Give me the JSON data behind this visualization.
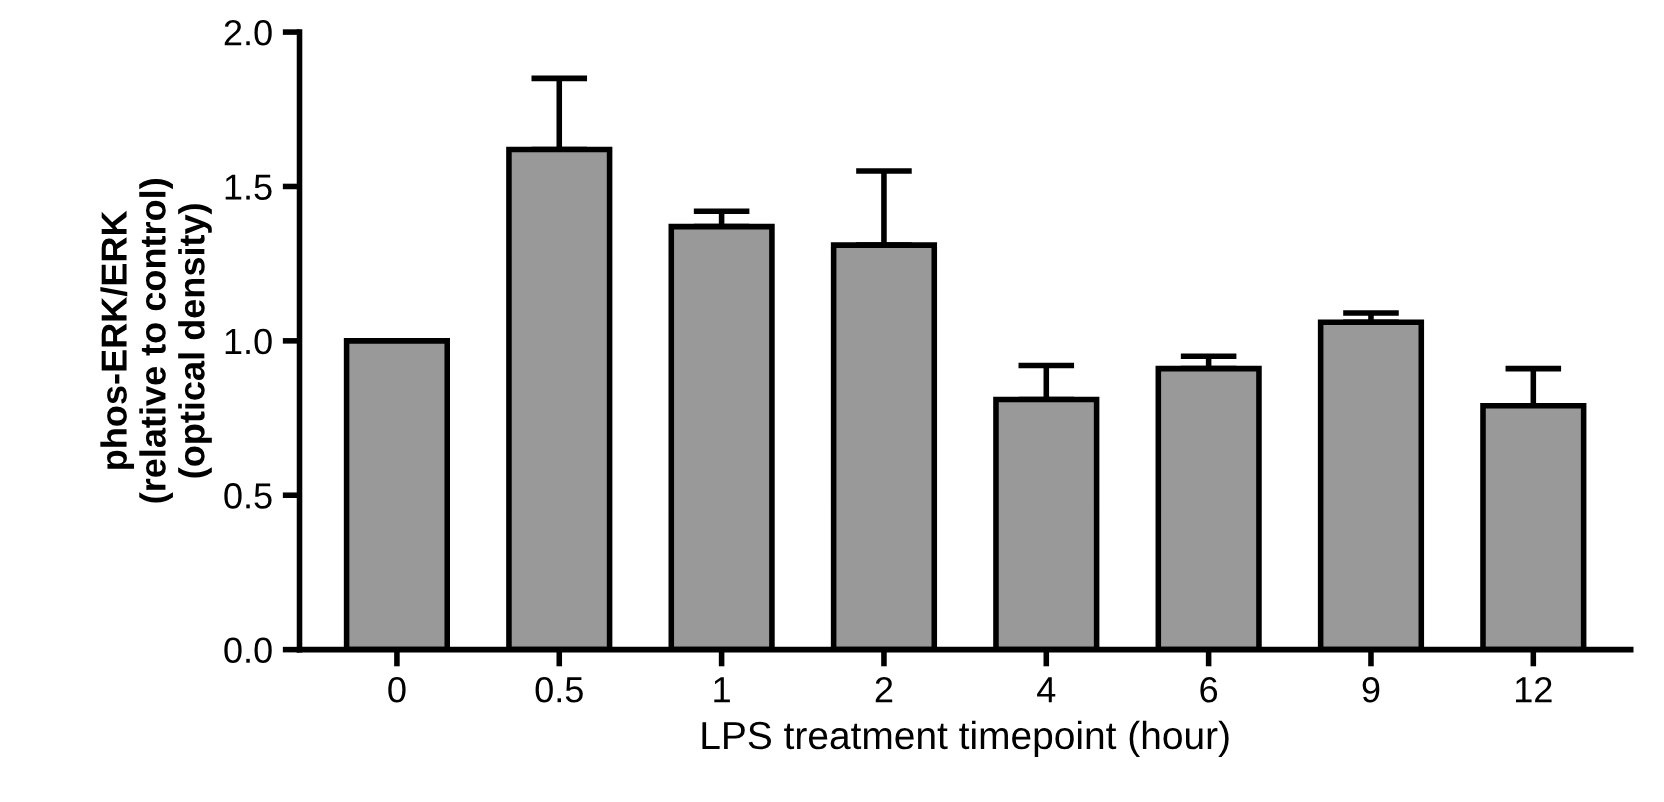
{
  "chart_data": {
    "type": "bar",
    "xlabel": "LPS treatment timepoint (hour)",
    "ylabel": "phos-ERK/ERK\n(relative to control)\n(optical density)",
    "categories": [
      "0",
      "0.5",
      "1",
      "2",
      "4",
      "6",
      "9",
      "12"
    ],
    "values": [
      1.0,
      1.62,
      1.37,
      1.31,
      0.81,
      0.91,
      1.06,
      0.79
    ],
    "errors": [
      null,
      [
        1.62,
        1.85
      ],
      [
        1.37,
        1.42
      ],
      [
        1.31,
        1.55
      ],
      [
        0.81,
        0.92
      ],
      [
        0.91,
        0.95
      ],
      [
        1.06,
        1.09
      ],
      [
        0.79,
        0.91
      ]
    ],
    "color": "#999999",
    "ylim": [
      0,
      2.0
    ],
    "yticks": [
      {
        "value": 0,
        "label": "0.0"
      },
      0.5,
      {
        "value": 1,
        "label": "1.0"
      },
      1.5,
      {
        "value": 2,
        "label": "2.0"
      }
    ],
    "grid": false,
    "legend": false
  }
}
